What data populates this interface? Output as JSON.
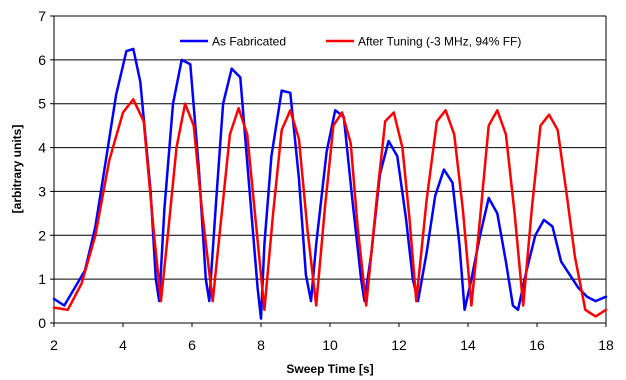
{
  "chart_data": {
    "type": "line",
    "xlabel": "Sweep Time [s]",
    "ylabel": "[arbitrary units]",
    "xlim": [
      2,
      18
    ],
    "ylim": [
      0,
      7
    ],
    "xticks": [
      "2",
      "4",
      "6",
      "8",
      "10",
      "12",
      "14",
      "16",
      "18"
    ],
    "yticks": [
      "0",
      "1",
      "2",
      "3",
      "4",
      "5",
      "6",
      "7"
    ],
    "grid": "horizontal",
    "legend_position": "top",
    "series": [
      {
        "name": "As Fabricated",
        "color": "#0000ff",
        "x": [
          2.0,
          2.3,
          2.6,
          2.9,
          3.2,
          3.5,
          3.8,
          4.1,
          4.3,
          4.5,
          4.8,
          4.95,
          5.05,
          5.2,
          5.45,
          5.7,
          5.95,
          6.2,
          6.4,
          6.5,
          6.7,
          6.9,
          7.15,
          7.4,
          7.65,
          7.9,
          8.0,
          8.1,
          8.3,
          8.6,
          8.85,
          9.1,
          9.3,
          9.45,
          9.6,
          9.9,
          10.15,
          10.4,
          10.65,
          10.9,
          11.0,
          11.2,
          11.45,
          11.7,
          11.95,
          12.2,
          12.4,
          12.55,
          12.8,
          13.05,
          13.3,
          13.55,
          13.75,
          13.9,
          14.1,
          14.35,
          14.6,
          14.85,
          15.1,
          15.3,
          15.45,
          15.7,
          15.95,
          16.2,
          16.45,
          16.7,
          16.95,
          17.2,
          17.45,
          17.7,
          18.0
        ],
        "values": [
          0.55,
          0.4,
          0.8,
          1.2,
          2.2,
          3.7,
          5.2,
          6.2,
          6.25,
          5.5,
          3.0,
          1.0,
          0.5,
          2.6,
          5.0,
          6.0,
          5.9,
          3.5,
          1.0,
          0.5,
          2.8,
          5.0,
          5.8,
          5.6,
          3.2,
          0.8,
          0.1,
          1.8,
          3.8,
          5.3,
          5.25,
          3.3,
          1.1,
          0.5,
          1.8,
          3.9,
          4.85,
          4.7,
          2.8,
          1.0,
          0.5,
          1.6,
          3.4,
          4.15,
          3.8,
          2.4,
          1.0,
          0.5,
          1.6,
          2.9,
          3.5,
          3.2,
          1.8,
          0.3,
          1.0,
          2.0,
          2.85,
          2.5,
          1.4,
          0.4,
          0.3,
          1.2,
          2.0,
          2.35,
          2.2,
          1.4,
          1.1,
          0.8,
          0.6,
          0.5,
          0.6
        ]
      },
      {
        "name": "After Tuning (-3 MHz, 94% FF)",
        "color": "#ff0000",
        "x": [
          2.0,
          2.4,
          2.8,
          3.2,
          3.6,
          4.0,
          4.3,
          4.6,
          4.9,
          5.1,
          5.3,
          5.55,
          5.8,
          6.05,
          6.3,
          6.6,
          6.85,
          7.1,
          7.35,
          7.6,
          7.85,
          8.1,
          8.35,
          8.6,
          8.85,
          9.1,
          9.35,
          9.6,
          9.85,
          10.1,
          10.35,
          10.6,
          10.8,
          11.05,
          11.35,
          11.6,
          11.85,
          12.1,
          12.3,
          12.5,
          12.8,
          13.1,
          13.35,
          13.6,
          13.85,
          14.1,
          14.35,
          14.6,
          14.85,
          15.1,
          15.35,
          15.6,
          15.85,
          16.1,
          16.35,
          16.6,
          16.85,
          17.1,
          17.4,
          17.7,
          18.0
        ],
        "values": [
          0.35,
          0.3,
          0.9,
          2.0,
          3.7,
          4.8,
          5.1,
          4.6,
          2.0,
          0.5,
          2.0,
          4.0,
          5.0,
          4.5,
          2.5,
          0.5,
          2.4,
          4.3,
          4.9,
          4.3,
          2.3,
          0.3,
          2.5,
          4.4,
          4.85,
          4.2,
          2.1,
          0.4,
          2.6,
          4.5,
          4.8,
          4.1,
          2.2,
          0.4,
          2.8,
          4.6,
          4.8,
          4.0,
          2.4,
          0.5,
          2.8,
          4.6,
          4.85,
          4.3,
          2.6,
          0.4,
          2.4,
          4.5,
          4.85,
          4.3,
          2.5,
          0.4,
          2.6,
          4.5,
          4.75,
          4.4,
          3.0,
          1.5,
          0.3,
          0.15,
          0.3
        ]
      }
    ]
  }
}
